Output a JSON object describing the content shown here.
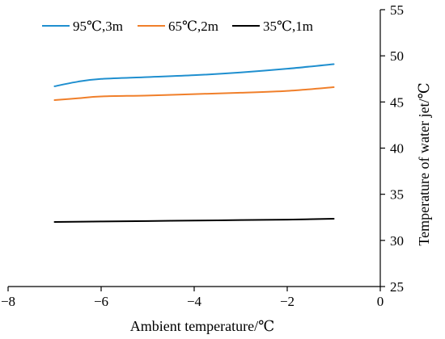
{
  "chart_data": {
    "type": "line",
    "xlabel": "Ambient temperature/℃",
    "ylabel": "Temperature of water jet/℃",
    "xlim": [
      -8,
      0
    ],
    "ylim": [
      25,
      55
    ],
    "x_ticks": [
      -8,
      -6,
      -4,
      -2,
      0
    ],
    "y_ticks": [
      25,
      30,
      35,
      40,
      45,
      50,
      55
    ],
    "x_tick_labels": [
      "−8",
      "−6",
      "−4",
      "−2",
      "0"
    ],
    "y_tick_labels": [
      "25",
      "30",
      "35",
      "40",
      "45",
      "50",
      "55"
    ],
    "y_axis_side": "right",
    "grid": false,
    "legend_position": "top",
    "series": [
      {
        "name": "95℃,3m",
        "color": "#1f8fcf",
        "x": [
          -7,
          -6.5,
          -6,
          -5,
          -4,
          -3,
          -2,
          -1
        ],
        "y": [
          46.7,
          47.2,
          47.5,
          47.7,
          47.9,
          48.2,
          48.6,
          49.1
        ]
      },
      {
        "name": "65℃,2m",
        "color": "#f07f2a",
        "x": [
          -7,
          -6.5,
          -6,
          -5,
          -4,
          -3,
          -2,
          -1
        ],
        "y": [
          45.2,
          45.4,
          45.6,
          45.7,
          45.85,
          46.0,
          46.2,
          46.6
        ]
      },
      {
        "name": "35℃,1m",
        "color": "#000000",
        "x": [
          -7,
          -6,
          -5,
          -4,
          -3,
          -2,
          -1
        ],
        "y": [
          32.0,
          32.05,
          32.1,
          32.15,
          32.2,
          32.25,
          32.35
        ]
      }
    ]
  }
}
